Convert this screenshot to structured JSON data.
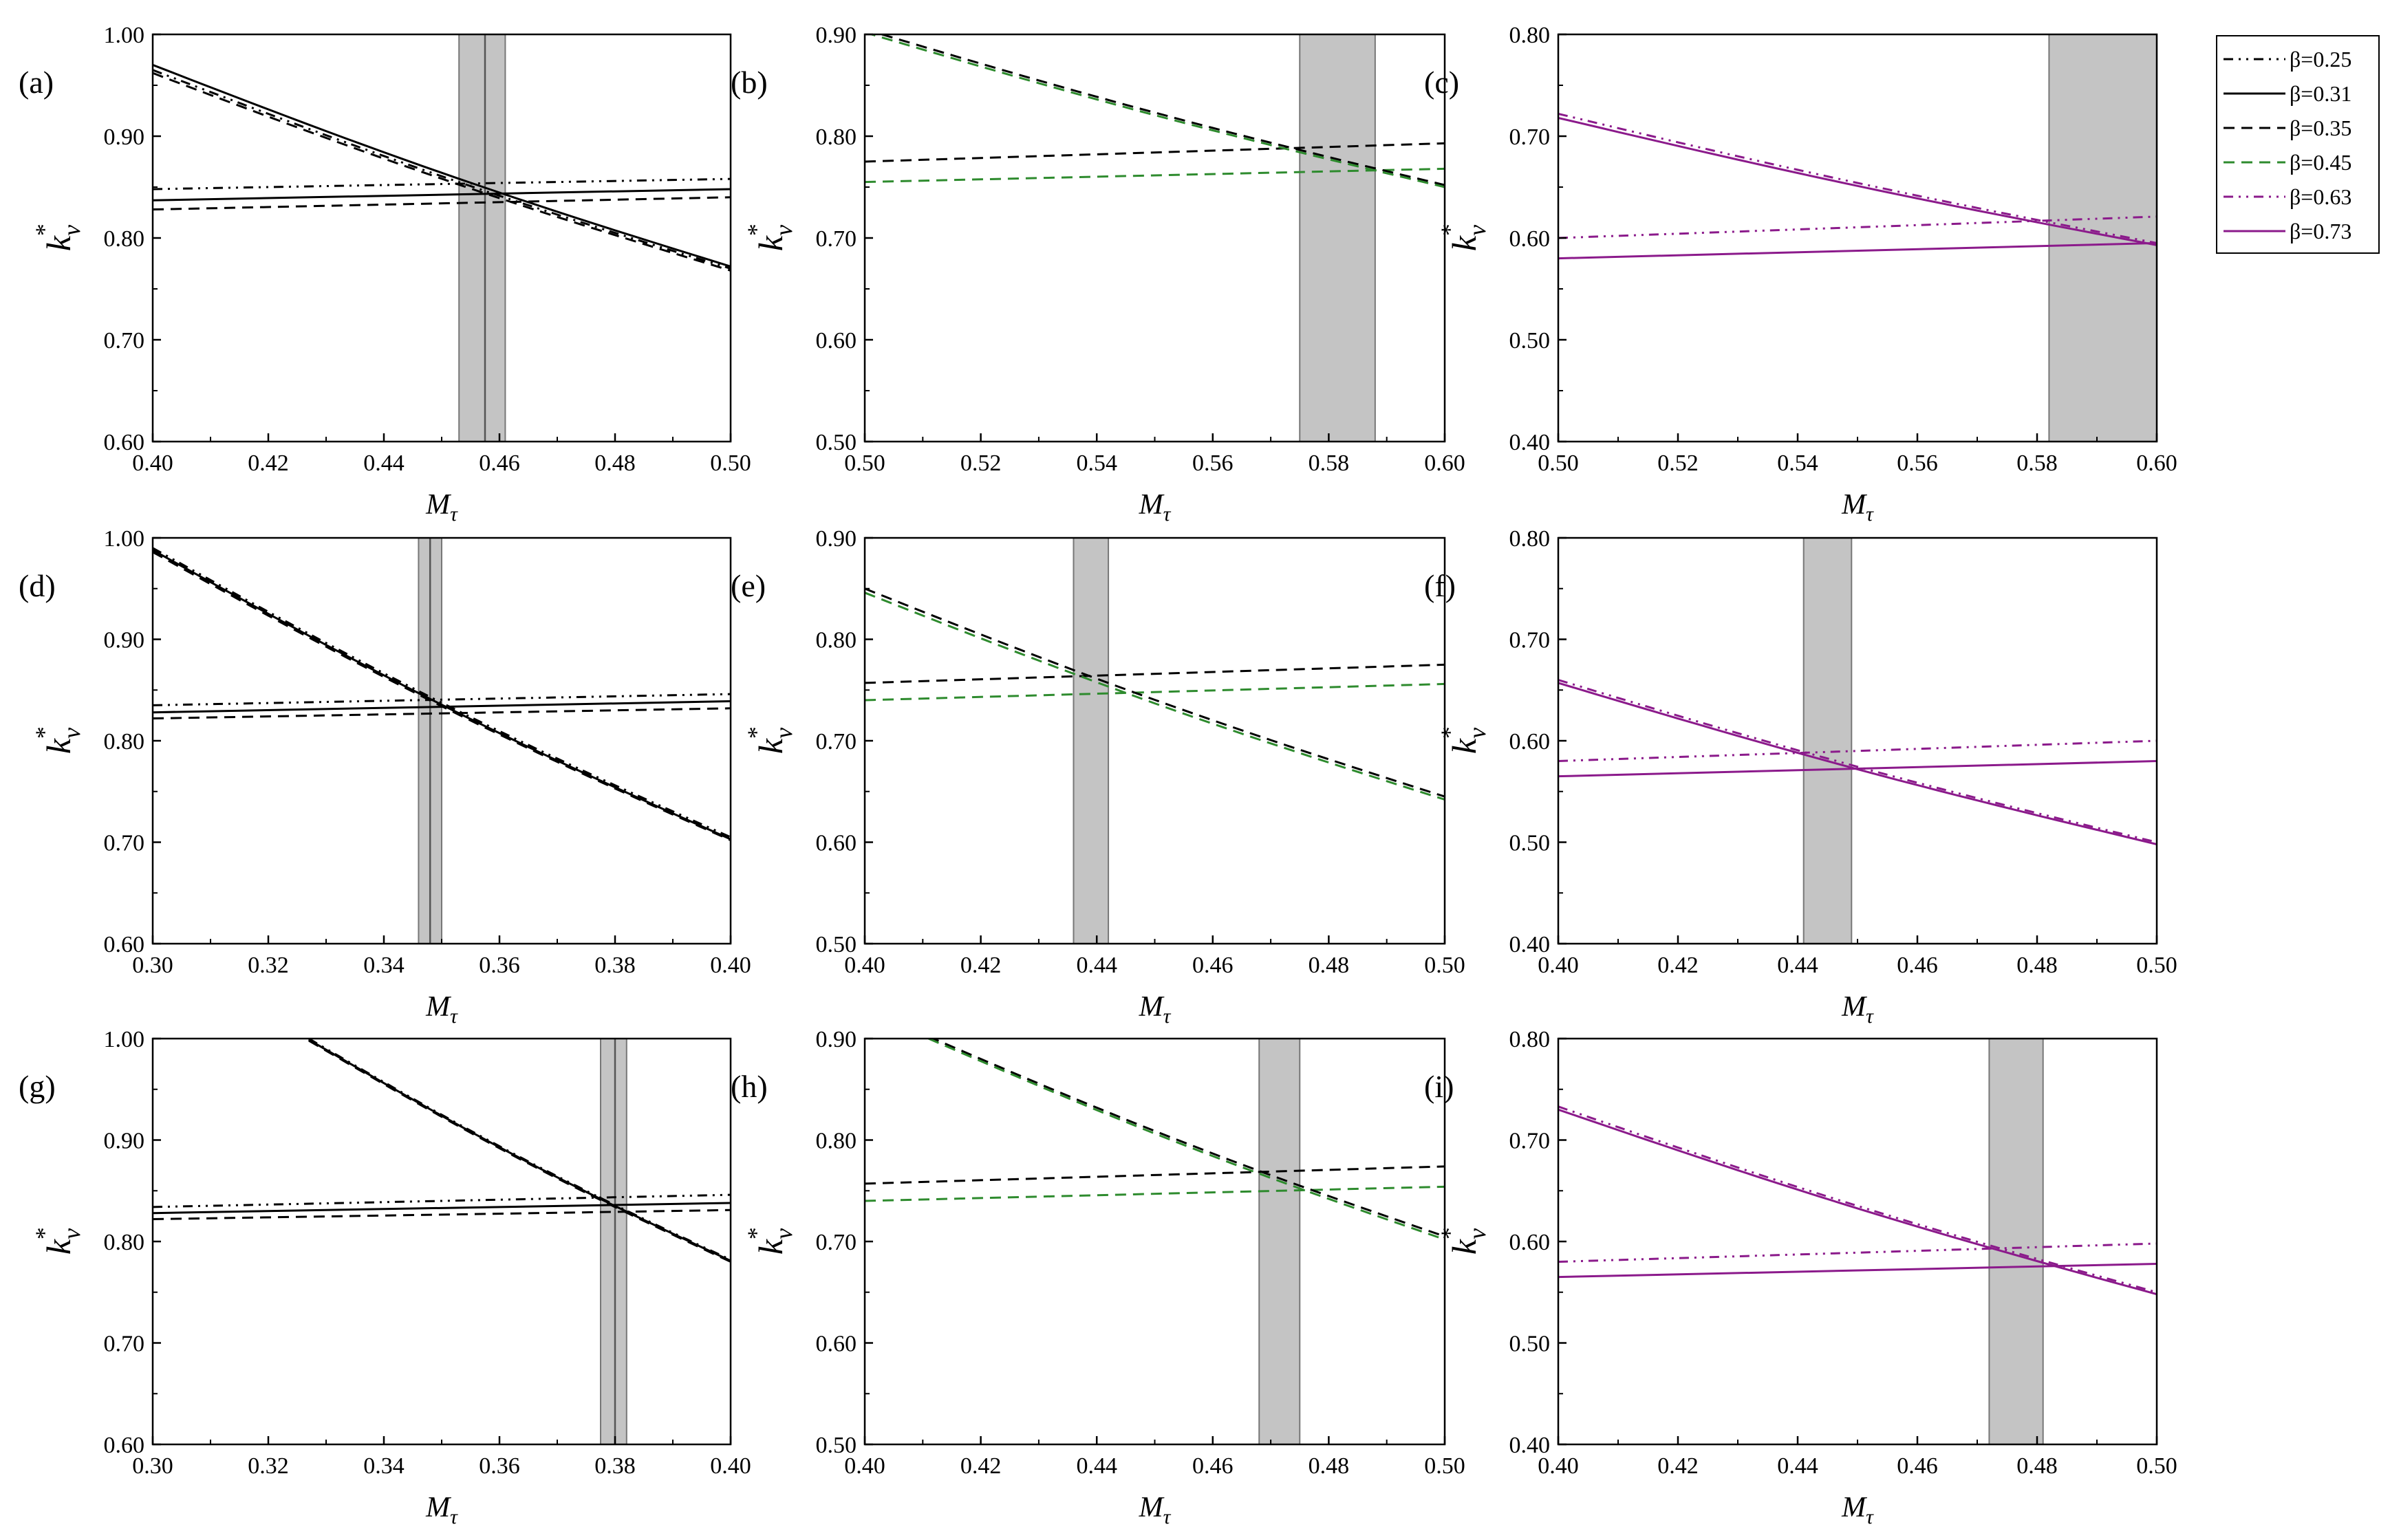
{
  "figure": {
    "legend": [
      {
        "label": "β=0.25",
        "color": "#000000",
        "dash": "dashdotdot"
      },
      {
        "label": "β=0.31",
        "color": "#000000",
        "dash": "solid"
      },
      {
        "label": "β=0.35",
        "color": "#000000",
        "dash": "dash"
      },
      {
        "label": "β=0.45",
        "color": "#2e8b2e",
        "dash": "dash"
      },
      {
        "label": "β=0.63",
        "color": "#8b1a8b",
        "dash": "dashdotdot"
      },
      {
        "label": "β=0.73",
        "color": "#8b1a8b",
        "dash": "solid"
      }
    ],
    "ylabel_main": "k",
    "ylabel_sub": "v",
    "ylabel_sup": "*",
    "xlabel_main": "M",
    "xlabel_sub": "τ"
  },
  "chart_data": [
    {
      "type": "line",
      "panel": "(a)",
      "xlim": [
        0.4,
        0.5
      ],
      "ylim": [
        0.6,
        1.0
      ],
      "xticks": [
        "0.40",
        "0.42",
        "0.44",
        "0.46",
        "0.48",
        "0.50"
      ],
      "yticks": [
        "0.60",
        "0.70",
        "0.80",
        "0.90",
        "1.00"
      ],
      "xlabel": "Mτ",
      "ylabel": "k*v",
      "band": [
        0.453,
        0.461
      ],
      "band_lines": [
        0.4575
      ],
      "series": [
        {
          "name": "β=0.25",
          "x": [
            0.4,
            0.5
          ],
          "y": [
            0.848,
            0.858
          ]
        },
        {
          "name": "β=0.31",
          "x": [
            0.4,
            0.5
          ],
          "y": [
            0.837,
            0.848
          ]
        },
        {
          "name": "β=0.35",
          "x": [
            0.4,
            0.5
          ],
          "y": [
            0.828,
            0.84
          ]
        },
        {
          "name": "β=0.25",
          "x": [
            0.4,
            0.5
          ],
          "y": [
            0.965,
            0.77
          ],
          "curve": 1
        },
        {
          "name": "β=0.31",
          "x": [
            0.4,
            0.5
          ],
          "y": [
            0.97,
            0.772
          ],
          "curve": 1
        },
        {
          "name": "β=0.35",
          "x": [
            0.4,
            0.5
          ],
          "y": [
            0.962,
            0.768
          ],
          "curve": 1
        }
      ]
    },
    {
      "type": "line",
      "panel": "(b)",
      "xlim": [
        0.5,
        0.6
      ],
      "ylim": [
        0.5,
        0.9
      ],
      "xticks": [
        "0.50",
        "0.52",
        "0.54",
        "0.56",
        "0.58",
        "0.60"
      ],
      "yticks": [
        "0.50",
        "0.60",
        "0.70",
        "0.80",
        "0.90"
      ],
      "xlabel": "Mτ",
      "ylabel": "k*v",
      "band": [
        0.575,
        0.588
      ],
      "band_lines": [],
      "series": [
        {
          "name": "β=0.35",
          "x": [
            0.5,
            0.6
          ],
          "y": [
            0.775,
            0.793
          ]
        },
        {
          "name": "β=0.45",
          "x": [
            0.5,
            0.6
          ],
          "y": [
            0.755,
            0.768
          ]
        },
        {
          "name": "β=0.35",
          "x": [
            0.5,
            0.6
          ],
          "y": [
            0.905,
            0.752
          ],
          "curve": 1
        },
        {
          "name": "β=0.45",
          "x": [
            0.5,
            0.6
          ],
          "y": [
            0.902,
            0.75
          ],
          "curve": 1
        }
      ]
    },
    {
      "type": "line",
      "panel": "(c)",
      "xlim": [
        0.5,
        0.6
      ],
      "ylim": [
        0.4,
        0.8
      ],
      "xticks": [
        "0.50",
        "0.52",
        "0.54",
        "0.56",
        "0.58",
        "0.60"
      ],
      "yticks": [
        "0.40",
        "0.50",
        "0.60",
        "0.70",
        "0.80"
      ],
      "xlabel": "Mτ",
      "ylabel": "k*v",
      "band": [
        0.582,
        0.6
      ],
      "band_lines": [],
      "series": [
        {
          "name": "β=0.63",
          "x": [
            0.5,
            0.6
          ],
          "y": [
            0.6,
            0.621
          ]
        },
        {
          "name": "β=0.73",
          "x": [
            0.5,
            0.6
          ],
          "y": [
            0.58,
            0.595
          ]
        },
        {
          "name": "β=0.63",
          "x": [
            0.5,
            0.6
          ],
          "y": [
            0.722,
            0.595
          ],
          "curve": 1
        },
        {
          "name": "β=0.73",
          "x": [
            0.5,
            0.6
          ],
          "y": [
            0.718,
            0.593
          ],
          "curve": 1
        }
      ]
    },
    {
      "type": "line",
      "panel": "(d)",
      "xlim": [
        0.3,
        0.4
      ],
      "ylim": [
        0.6,
        1.0
      ],
      "xticks": [
        "0.30",
        "0.32",
        "0.34",
        "0.36",
        "0.38",
        "0.40"
      ],
      "yticks": [
        "0.60",
        "0.70",
        "0.80",
        "0.90",
        "1.00"
      ],
      "xlabel": "Mτ",
      "ylabel": "k*v",
      "band": [
        0.346,
        0.35
      ],
      "band_lines": [
        0.348
      ],
      "series": [
        {
          "name": "β=0.25",
          "x": [
            0.3,
            0.4
          ],
          "y": [
            0.835,
            0.846
          ]
        },
        {
          "name": "β=0.31",
          "x": [
            0.3,
            0.4
          ],
          "y": [
            0.828,
            0.839
          ]
        },
        {
          "name": "β=0.35",
          "x": [
            0.3,
            0.4
          ],
          "y": [
            0.822,
            0.832
          ]
        },
        {
          "name": "β=0.25",
          "x": [
            0.3,
            0.4
          ],
          "y": [
            0.99,
            0.705
          ],
          "curve": 1
        },
        {
          "name": "β=0.31",
          "x": [
            0.3,
            0.4
          ],
          "y": [
            0.988,
            0.703
          ],
          "curve": 1
        },
        {
          "name": "β=0.35",
          "x": [
            0.3,
            0.4
          ],
          "y": [
            0.986,
            0.702
          ],
          "curve": 1
        }
      ]
    },
    {
      "type": "line",
      "panel": "(e)",
      "xlim": [
        0.4,
        0.5
      ],
      "ylim": [
        0.5,
        0.9
      ],
      "xticks": [
        "0.40",
        "0.42",
        "0.44",
        "0.46",
        "0.48",
        "0.50"
      ],
      "yticks": [
        "0.50",
        "0.60",
        "0.70",
        "0.80",
        "0.90"
      ],
      "xlabel": "Mτ",
      "ylabel": "k*v",
      "band": [
        0.436,
        0.442
      ],
      "band_lines": [],
      "series": [
        {
          "name": "β=0.35",
          "x": [
            0.4,
            0.5
          ],
          "y": [
            0.757,
            0.775
          ]
        },
        {
          "name": "β=0.45",
          "x": [
            0.4,
            0.5
          ],
          "y": [
            0.74,
            0.756
          ]
        },
        {
          "name": "β=0.35",
          "x": [
            0.4,
            0.5
          ],
          "y": [
            0.85,
            0.645
          ],
          "curve": 1
        },
        {
          "name": "β=0.45",
          "x": [
            0.4,
            0.5
          ],
          "y": [
            0.846,
            0.642
          ],
          "curve": 1
        }
      ]
    },
    {
      "type": "line",
      "panel": "(f)",
      "xlim": [
        0.4,
        0.5
      ],
      "ylim": [
        0.4,
        0.8
      ],
      "xticks": [
        "0.40",
        "0.42",
        "0.44",
        "0.46",
        "0.48",
        "0.50"
      ],
      "yticks": [
        "0.40",
        "0.50",
        "0.60",
        "0.70",
        "0.80"
      ],
      "xlabel": "Mτ",
      "ylabel": "k*v",
      "band": [
        0.441,
        0.449
      ],
      "band_lines": [],
      "series": [
        {
          "name": "β=0.63",
          "x": [
            0.4,
            0.5
          ],
          "y": [
            0.58,
            0.6
          ]
        },
        {
          "name": "β=0.73",
          "x": [
            0.4,
            0.5
          ],
          "y": [
            0.565,
            0.58
          ]
        },
        {
          "name": "β=0.63",
          "x": [
            0.4,
            0.5
          ],
          "y": [
            0.66,
            0.5
          ],
          "curve": 1
        },
        {
          "name": "β=0.73",
          "x": [
            0.4,
            0.5
          ],
          "y": [
            0.657,
            0.498
          ],
          "curve": 1
        }
      ]
    },
    {
      "type": "line",
      "panel": "(g)",
      "xlim": [
        0.3,
        0.4
      ],
      "ylim": [
        0.6,
        1.0
      ],
      "xticks": [
        "0.30",
        "0.32",
        "0.34",
        "0.36",
        "0.38",
        "0.40"
      ],
      "yticks": [
        "0.60",
        "0.70",
        "0.80",
        "0.90",
        "1.00"
      ],
      "xlabel": "Mτ",
      "ylabel": "k*v",
      "band": [
        0.3775,
        0.382
      ],
      "band_lines": [
        0.38
      ],
      "series": [
        {
          "name": "β=0.25",
          "x": [
            0.3,
            0.4
          ],
          "y": [
            0.834,
            0.846
          ]
        },
        {
          "name": "β=0.31",
          "x": [
            0.3,
            0.4
          ],
          "y": [
            0.828,
            0.838
          ]
        },
        {
          "name": "β=0.35",
          "x": [
            0.3,
            0.4
          ],
          "y": [
            0.822,
            0.831
          ]
        },
        {
          "name": "β=0.25",
          "x": [
            0.327,
            0.4
          ],
          "y": [
            1.0,
            0.782
          ],
          "curve": 1
        },
        {
          "name": "β=0.31",
          "x": [
            0.327,
            0.4
          ],
          "y": [
            0.999,
            0.781
          ],
          "curve": 1
        },
        {
          "name": "β=0.35",
          "x": [
            0.327,
            0.4
          ],
          "y": [
            0.998,
            0.78
          ],
          "curve": 1
        }
      ]
    },
    {
      "type": "line",
      "panel": "(h)",
      "xlim": [
        0.4,
        0.5
      ],
      "ylim": [
        0.5,
        0.9
      ],
      "xticks": [
        "0.40",
        "0.42",
        "0.44",
        "0.46",
        "0.48",
        "0.50"
      ],
      "yticks": [
        "0.50",
        "0.60",
        "0.70",
        "0.80",
        "0.90"
      ],
      "xlabel": "Mτ",
      "ylabel": "k*v",
      "band": [
        0.468,
        0.475
      ],
      "band_lines": [],
      "series": [
        {
          "name": "β=0.35",
          "x": [
            0.4,
            0.5
          ],
          "y": [
            0.757,
            0.774
          ]
        },
        {
          "name": "β=0.45",
          "x": [
            0.4,
            0.5
          ],
          "y": [
            0.74,
            0.754
          ]
        },
        {
          "name": "β=0.35",
          "x": [
            0.411,
            0.5
          ],
          "y": [
            0.902,
            0.705
          ],
          "curve": 1
        },
        {
          "name": "β=0.45",
          "x": [
            0.411,
            0.5
          ],
          "y": [
            0.9,
            0.702
          ],
          "curve": 1
        }
      ]
    },
    {
      "type": "line",
      "panel": "(i)",
      "xlim": [
        0.4,
        0.5
      ],
      "ylim": [
        0.4,
        0.8
      ],
      "xticks": [
        "0.40",
        "0.42",
        "0.44",
        "0.46",
        "0.48",
        "0.50"
      ],
      "yticks": [
        "0.40",
        "0.50",
        "0.60",
        "0.70",
        "0.80"
      ],
      "xlabel": "Mτ",
      "ylabel": "k*v",
      "band": [
        0.472,
        0.481
      ],
      "band_lines": [],
      "series": [
        {
          "name": "β=0.63",
          "x": [
            0.4,
            0.5
          ],
          "y": [
            0.58,
            0.598
          ]
        },
        {
          "name": "β=0.73",
          "x": [
            0.4,
            0.5
          ],
          "y": [
            0.565,
            0.578
          ]
        },
        {
          "name": "β=0.63",
          "x": [
            0.4,
            0.5
          ],
          "y": [
            0.733,
            0.55
          ],
          "curve": 1
        },
        {
          "name": "β=0.73",
          "x": [
            0.4,
            0.5
          ],
          "y": [
            0.73,
            0.548
          ],
          "curve": 1
        }
      ]
    }
  ]
}
